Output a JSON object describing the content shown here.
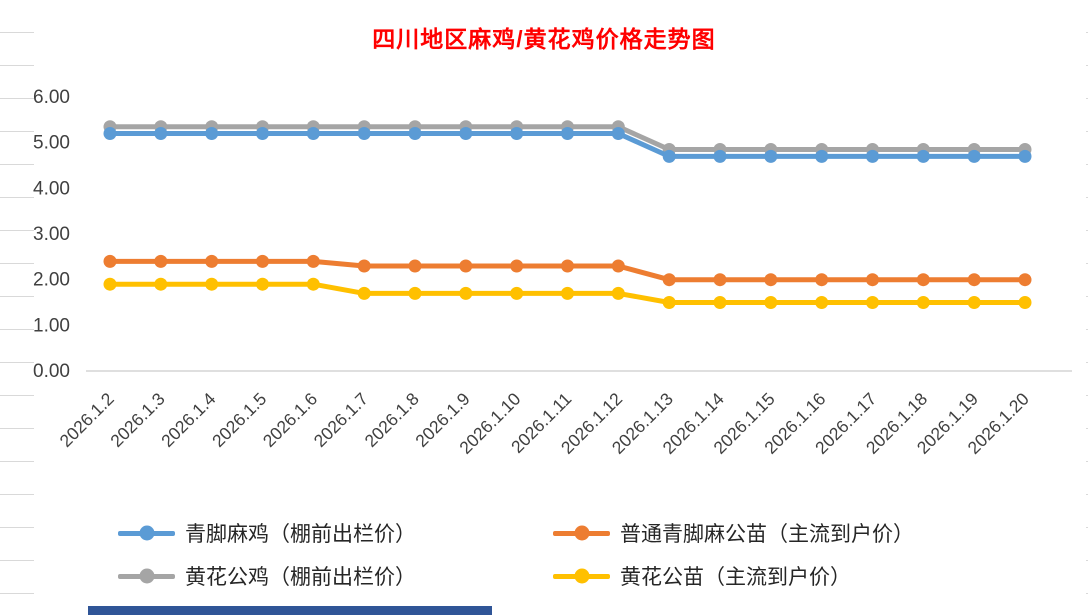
{
  "title": "四川地区麻鸡/黄花鸡价格走势图",
  "title_color": "#FF0000",
  "selection_strip_color": "#2F5597",
  "chart_data": {
    "type": "line",
    "title": "四川地区麻鸡/黄花鸡价格走势图",
    "x": [
      "2026.1.2",
      "2026.1.3",
      "2026.1.4",
      "2026.1.5",
      "2026.1.6",
      "2026.1.7",
      "2026.1.8",
      "2026.1.9",
      "2026.1.10",
      "2026.1.11",
      "2026.1.12",
      "2026.1.13",
      "2026.1.14",
      "2026.1.15",
      "2026.1.16",
      "2026.1.17",
      "2026.1.18",
      "2026.1.19",
      "2026.1.20"
    ],
    "series": [
      {
        "name": "青脚麻鸡（棚前出栏价）",
        "color": "#5B9BD5",
        "values": [
          5.2,
          5.2,
          5.2,
          5.2,
          5.2,
          5.2,
          5.2,
          5.2,
          5.2,
          5.2,
          5.2,
          4.7,
          4.7,
          4.7,
          4.7,
          4.7,
          4.7,
          4.7,
          4.7
        ]
      },
      {
        "name": "黄花公鸡（棚前出栏价）",
        "color": "#A5A5A5",
        "values": [
          5.35,
          5.35,
          5.35,
          5.35,
          5.35,
          5.35,
          5.35,
          5.35,
          5.35,
          5.35,
          5.35,
          4.85,
          4.85,
          4.85,
          4.85,
          4.85,
          4.85,
          4.85,
          4.85
        ]
      },
      {
        "name": "普通青脚麻公苗（主流到户价）",
        "color": "#ED7D31",
        "values": [
          2.4,
          2.4,
          2.4,
          2.4,
          2.4,
          2.3,
          2.3,
          2.3,
          2.3,
          2.3,
          2.3,
          2.0,
          2.0,
          2.0,
          2.0,
          2.0,
          2.0,
          2.0,
          2.0
        ]
      },
      {
        "name": "黄花公苗（主流到户价）",
        "color": "#FFC000",
        "values": [
          1.9,
          1.9,
          1.9,
          1.9,
          1.9,
          1.7,
          1.7,
          1.7,
          1.7,
          1.7,
          1.7,
          1.5,
          1.5,
          1.5,
          1.5,
          1.5,
          1.5,
          1.5,
          1.5
        ]
      }
    ],
    "ylim": [
      0,
      6
    ],
    "yticks": [
      "6.00",
      "5.00",
      "4.00",
      "3.00",
      "2.00",
      "1.00",
      "0.00"
    ],
    "grid": false,
    "legend_position": "bottom",
    "legend_order": [
      0,
      2,
      1,
      3
    ]
  }
}
